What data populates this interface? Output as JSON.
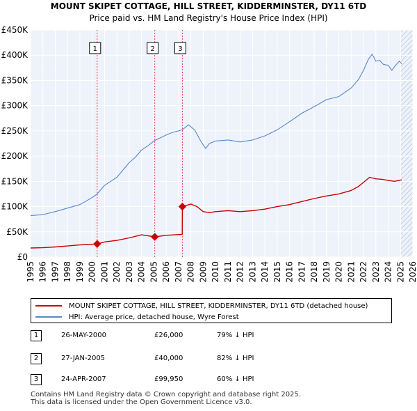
{
  "title": "MOUNT SKIPET COTTAGE, HILL STREET, KIDDERMINSTER, DY11 6TD",
  "subtitle": "Price paid vs. HM Land Registry's House Price Index (HPI)",
  "legend": {
    "property": "MOUNT SKIPET COTTAGE, HILL STREET, KIDDERMINSTER, DY11 6TD (detached house)",
    "hpi": "HPI: Average price, detached house, Wyre Forest"
  },
  "sales": [
    {
      "num": "1",
      "date": "26-MAY-2000",
      "price": "£26,000",
      "hpi": "79% ↓ HPI"
    },
    {
      "num": "2",
      "date": "27-JAN-2005",
      "price": "£40,000",
      "hpi": "82% ↓ HPI"
    },
    {
      "num": "3",
      "date": "24-APR-2007",
      "price": "£99,950",
      "hpi": "60% ↓ HPI"
    }
  ],
  "footer": {
    "line1": "Contains HM Land Registry data © Crown copyright and database right 2025.",
    "line2": "This data is licensed under the Open Government Licence v3.0."
  },
  "colors": {
    "property": "#cc0000",
    "hpi": "#5588cc",
    "vline": "#cc0000",
    "grid": "#dde3ee",
    "plotbg": "#eef2fa"
  },
  "chart_data": {
    "type": "line",
    "title": "MOUNT SKIPET COTTAGE, HILL STREET, KIDDERMINSTER, DY11 6TD",
    "xlabel": "",
    "ylabel": "",
    "xlim": [
      1995,
      2026
    ],
    "ylim": [
      0,
      450000
    ],
    "yticks": [
      0,
      50000,
      100000,
      150000,
      200000,
      250000,
      300000,
      350000,
      400000,
      450000
    ],
    "ytick_labels": [
      "£0",
      "£50K",
      "£100K",
      "£150K",
      "£200K",
      "£250K",
      "£300K",
      "£350K",
      "£400K",
      "£450K"
    ],
    "xticks": [
      1995,
      1996,
      1997,
      1998,
      1999,
      2000,
      2001,
      2002,
      2003,
      2004,
      2005,
      2006,
      2007,
      2008,
      2009,
      2010,
      2011,
      2012,
      2013,
      2014,
      2015,
      2016,
      2017,
      2018,
      2019,
      2020,
      2021,
      2022,
      2023,
      2024,
      2025,
      2026
    ],
    "grid": true,
    "hatch_from": 2025.0,
    "series": [
      {
        "name": "HPI: Average price, detached house, Wyre Forest",
        "color": "#5588cc",
        "x": [
          1995,
          1996,
          1997,
          1998,
          1999,
          2000,
          2000.4,
          2001,
          2002,
          2003,
          2003.5,
          2004,
          2004.6,
          2005,
          2006,
          2006.5,
          2007,
          2007.3,
          2007.8,
          2008.3,
          2008.8,
          2009.2,
          2009.5,
          2010,
          2011,
          2012,
          2013,
          2014,
          2015,
          2016,
          2017,
          2018,
          2019,
          2020,
          2021,
          2021.6,
          2022,
          2022.4,
          2022.7,
          2023,
          2023.3,
          2023.6,
          2024,
          2024.3,
          2024.6,
          2024.9,
          2025.1
        ],
        "y": [
          82000,
          84000,
          90000,
          97000,
          104000,
          118000,
          125000,
          142000,
          158000,
          187000,
          198000,
          212000,
          222000,
          230000,
          242000,
          247000,
          250000,
          252000,
          262000,
          252000,
          230000,
          215000,
          225000,
          230000,
          232000,
          228000,
          232000,
          240000,
          252000,
          268000,
          285000,
          298000,
          312000,
          318000,
          335000,
          352000,
          370000,
          392000,
          402000,
          388000,
          390000,
          382000,
          380000,
          370000,
          380000,
          388000,
          383000
        ]
      },
      {
        "name": "MOUNT SKIPET COTTAGE, HILL STREET, KIDDERMINSTER, DY11 6TD (detached house)",
        "color": "#cc0000",
        "x": [
          1995,
          1996,
          1997,
          1998,
          1999,
          2000.4,
          2001,
          2002,
          2003,
          2004,
          2005.07,
          2006,
          2007.3,
          2007.31,
          2008,
          2008.5,
          2009,
          2009.5,
          2010,
          2011,
          2012,
          2013,
          2014,
          2015,
          2016,
          2017,
          2018,
          2019,
          2020,
          2021,
          2021.6,
          2022,
          2022.5,
          2023,
          2023.5,
          2024,
          2024.5,
          2025.1
        ],
        "y": [
          18000,
          18500,
          20000,
          22000,
          24000,
          26000,
          30000,
          33000,
          38000,
          44000,
          40000,
          43000,
          45000,
          99950,
          105000,
          100000,
          90000,
          88000,
          90000,
          92000,
          90000,
          92000,
          95000,
          100000,
          104000,
          110000,
          116000,
          121000,
          125000,
          132000,
          140000,
          148000,
          158000,
          155000,
          154000,
          152000,
          150000,
          153000
        ]
      }
    ],
    "sale_markers": [
      {
        "label": "1",
        "x": 2000.4,
        "y": 26000
      },
      {
        "label": "2",
        "x": 2005.07,
        "y": 40000
      },
      {
        "label": "3",
        "x": 2007.31,
        "y": 99950
      }
    ]
  }
}
